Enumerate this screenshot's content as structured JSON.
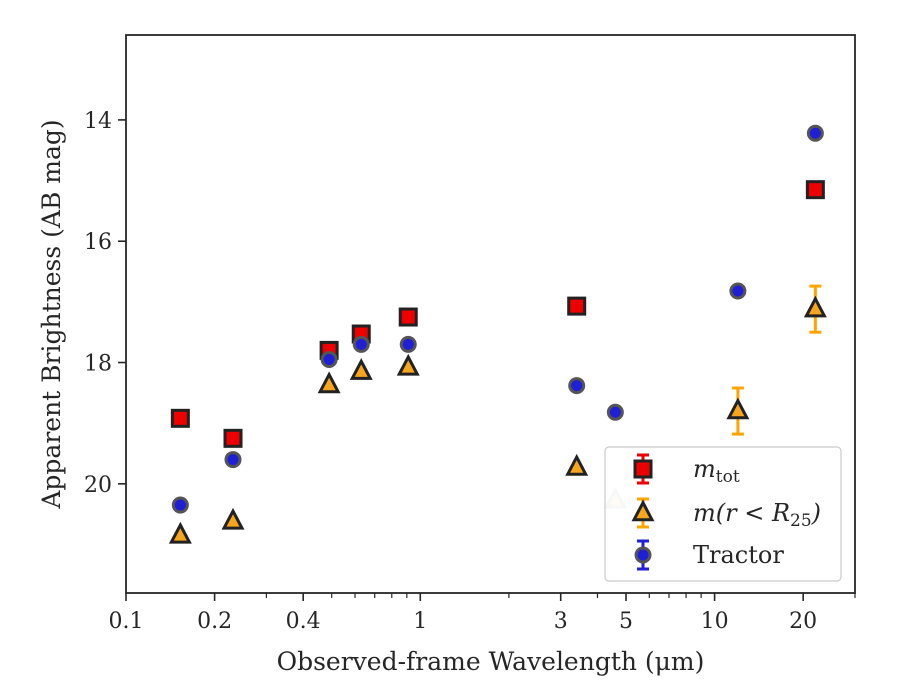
{
  "chart_data": {
    "type": "scatter",
    "xlabel": "Observed-frame Wavelength (μm)",
    "ylabel": "Apparent Brightness (AB mag)",
    "x_scale": "log",
    "xlim": [
      0.1,
      30
    ],
    "ylim": [
      21.8,
      12.6
    ],
    "y_inverted": true,
    "x_ticks": [
      {
        "value": 0.1,
        "label": "0.1"
      },
      {
        "value": 0.2,
        "label": "0.2"
      },
      {
        "value": 0.4,
        "label": "0.4"
      },
      {
        "value": 1,
        "label": "1"
      },
      {
        "value": 3,
        "label": "3"
      },
      {
        "value": 5,
        "label": "5"
      },
      {
        "value": 10,
        "label": "10"
      },
      {
        "value": 20,
        "label": "20"
      }
    ],
    "y_ticks": [
      {
        "value": 14,
        "label": "14"
      },
      {
        "value": 16,
        "label": "16"
      },
      {
        "value": 18,
        "label": "18"
      },
      {
        "value": 20,
        "label": "20"
      }
    ],
    "grid": false,
    "legend_position": "lower-right",
    "series": [
      {
        "name": "m_tot",
        "legend_parts": [
          "m",
          "tot"
        ],
        "marker": "square",
        "color": "#ee0000",
        "edge_color": "#222222",
        "error_color": "#ee0000",
        "points": [
          {
            "x": 0.153,
            "y": 18.92
          },
          {
            "x": 0.231,
            "y": 19.25
          },
          {
            "x": 0.49,
            "y": 17.8
          },
          {
            "x": 0.63,
            "y": 17.53
          },
          {
            "x": 0.91,
            "y": 17.25
          },
          {
            "x": 3.4,
            "y": 17.07
          },
          {
            "x": 22,
            "y": 15.15
          }
        ]
      },
      {
        "name": "m(r < R25)",
        "legend_parts": [
          "m(r < R",
          "25",
          ")"
        ],
        "marker": "triangle",
        "color": "#f7a51c",
        "edge_color": "#222222",
        "error_color": "#ffa500",
        "points": [
          {
            "x": 0.153,
            "y": 20.85
          },
          {
            "x": 0.231,
            "y": 20.62
          },
          {
            "x": 0.49,
            "y": 18.37
          },
          {
            "x": 0.63,
            "y": 18.15
          },
          {
            "x": 0.91,
            "y": 18.08
          },
          {
            "x": 3.4,
            "y": 19.73
          },
          {
            "x": 4.6,
            "y": 20.27,
            "faded": true
          },
          {
            "x": 12,
            "y": 18.8,
            "err": 0.38
          },
          {
            "x": 22,
            "y": 17.12,
            "err": 0.38
          }
        ]
      },
      {
        "name": "Tractor",
        "marker": "circle",
        "color": "#1f1fd6",
        "edge_color": "#555555",
        "error_color": "#1f1fd6",
        "points": [
          {
            "x": 0.153,
            "y": 20.35
          },
          {
            "x": 0.231,
            "y": 19.6
          },
          {
            "x": 0.49,
            "y": 17.95
          },
          {
            "x": 0.63,
            "y": 17.7
          },
          {
            "x": 0.91,
            "y": 17.7
          },
          {
            "x": 3.4,
            "y": 18.38
          },
          {
            "x": 4.6,
            "y": 18.82
          },
          {
            "x": 12,
            "y": 16.82
          },
          {
            "x": 22,
            "y": 14.22
          }
        ]
      }
    ]
  }
}
